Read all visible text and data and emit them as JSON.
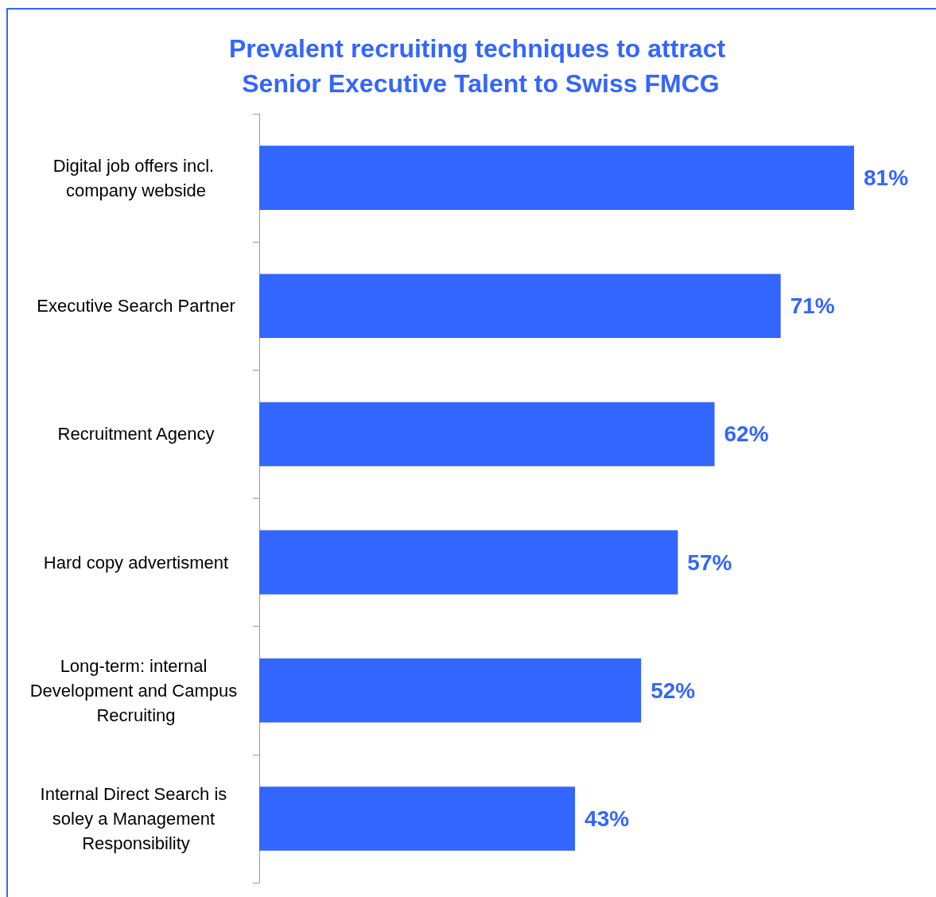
{
  "chart_data": {
    "type": "bar",
    "orientation": "horizontal",
    "title": "Prevalent recruiting techniques to attract Senior Executive Talent to Swiss FMCG",
    "categories": [
      "Digital job offers incl. company webside",
      "Executive Search Partner",
      "Recruitment Agency",
      "Hard copy advertisment",
      "Long-term: internal Development and Campus Recruiting",
      "Internal Direct Search is soley a Management Responsibility"
    ],
    "values": [
      81,
      71,
      62,
      57,
      52,
      43
    ],
    "value_labels": [
      "81%",
      "71%",
      "62%",
      "57%",
      "52%",
      "43%"
    ],
    "color": "#3366ff"
  }
}
